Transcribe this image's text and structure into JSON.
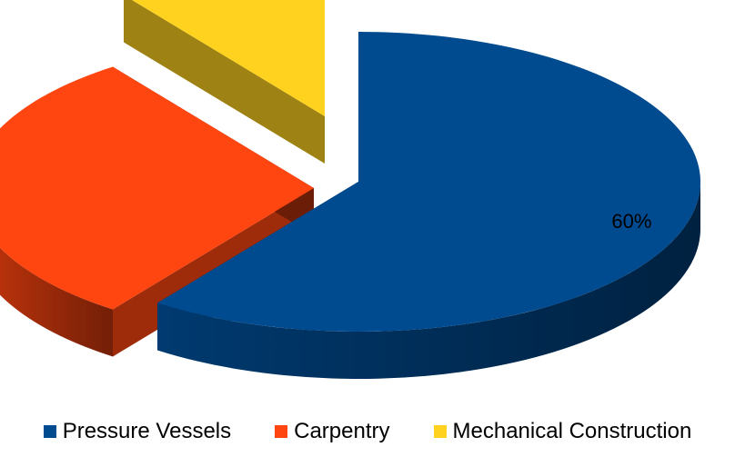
{
  "chart_data": {
    "type": "pie",
    "style": "3d-exploded",
    "categories": [
      "Pressure Vessels",
      "Carpentry",
      "Mechanical Construction"
    ],
    "values": [
      60,
      30,
      10
    ],
    "data_labels": [
      "60%",
      "",
      ""
    ],
    "colors": [
      "#004A8F",
      "#FF4510",
      "#FFD21F"
    ],
    "legend_position": "bottom"
  }
}
